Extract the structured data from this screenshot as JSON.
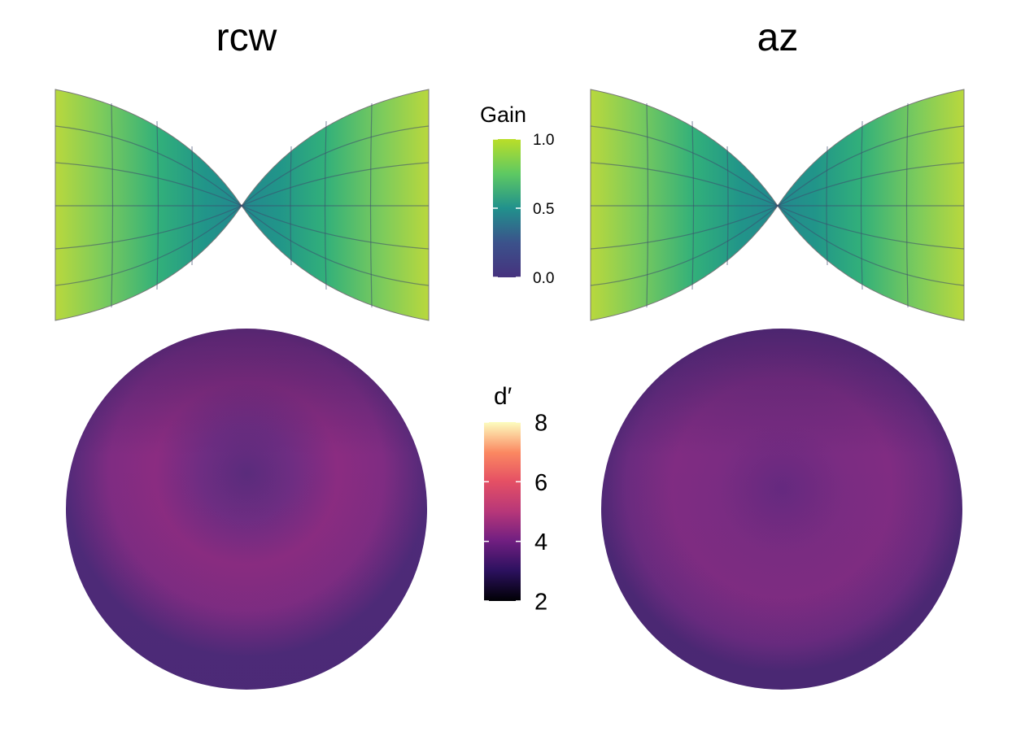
{
  "panels": {
    "left_title": "rcw",
    "right_title": "az"
  },
  "chart_data": [
    {
      "type": "heatmap",
      "projection": "bow-tie",
      "panel": "rcw",
      "colormap": "viridis",
      "description_of_values": "gain increases with distance from center",
      "center_value": 0.4,
      "edge_value": 0.9,
      "grid": true
    },
    {
      "type": "heatmap",
      "projection": "bow-tie",
      "panel": "az",
      "colormap": "viridis",
      "center_value": 0.4,
      "edge_value": 0.9,
      "grid": true
    },
    {
      "type": "heatmap",
      "projection": "disk",
      "panel": "rcw",
      "colormap": "magma",
      "center_value": 3.6,
      "ring_value": 4.6,
      "edge_value": 3.8,
      "grid": false
    },
    {
      "type": "heatmap",
      "projection": "disk",
      "panel": "az",
      "colormap": "magma",
      "center_value": 3.8,
      "ring_value": 4.3,
      "edge_value": 3.7,
      "grid": false
    }
  ],
  "legends": {
    "gain": {
      "title": "Gain",
      "ticks": [
        "1.0",
        "0.5",
        "0.0"
      ],
      "tick_values": [
        1.0,
        0.5,
        0.0
      ],
      "range": [
        0,
        1
      ],
      "colors": [
        "#bade28",
        "#5ec962",
        "#21918c",
        "#3b528b",
        "#46327e"
      ]
    },
    "dprime": {
      "title": "d′",
      "ticks": [
        "8",
        "6",
        "4",
        "2"
      ],
      "tick_values": [
        8,
        6,
        4,
        2
      ],
      "range": [
        2,
        8
      ],
      "colors": [
        "#fcfdbf",
        "#fb8861",
        "#e55064",
        "#b73779",
        "#721f81",
        "#2c115f",
        "#000004"
      ]
    }
  }
}
